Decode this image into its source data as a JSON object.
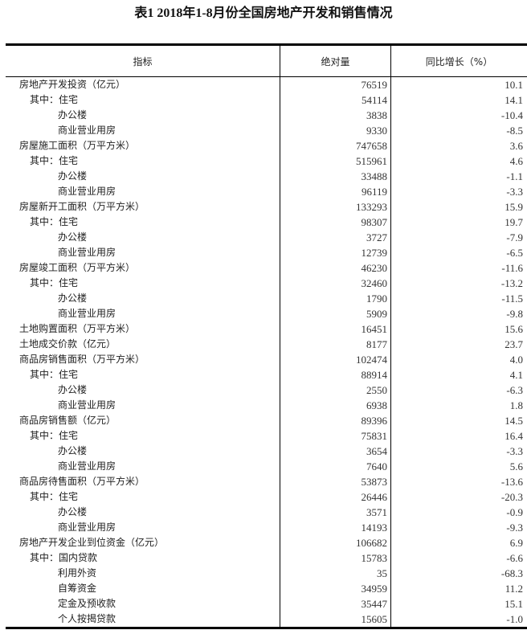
{
  "title": "表1 2018年1-8月份全国房地产开发和销售情况",
  "headers": {
    "indicator": "指标",
    "absolute": "绝对量",
    "yoy": "同比增长（%）"
  },
  "rows": [
    {
      "label": "房地产开发投资（亿元）",
      "level": 0,
      "value": "76519",
      "growth": "10.1"
    },
    {
      "label": "其中：住宅",
      "level": 1,
      "value": "54114",
      "growth": "14.1"
    },
    {
      "label": "办公楼",
      "level": 2,
      "value": "3838",
      "growth": "-10.4"
    },
    {
      "label": "商业营业用房",
      "level": 2,
      "value": "9330",
      "growth": "-8.5"
    },
    {
      "label": "房屋施工面积（万平方米）",
      "level": 0,
      "value": "747658",
      "growth": "3.6"
    },
    {
      "label": "其中：住宅",
      "level": 1,
      "value": "515961",
      "growth": "4.6"
    },
    {
      "label": "办公楼",
      "level": 2,
      "value": "33488",
      "growth": "-1.1"
    },
    {
      "label": "商业营业用房",
      "level": 2,
      "value": "96119",
      "growth": "-3.3"
    },
    {
      "label": "房屋新开工面积（万平方米）",
      "level": 0,
      "value": "133293",
      "growth": "15.9"
    },
    {
      "label": "其中：住宅",
      "level": 1,
      "value": "98307",
      "growth": "19.7"
    },
    {
      "label": "办公楼",
      "level": 2,
      "value": "3727",
      "growth": "-7.9"
    },
    {
      "label": "商业营业用房",
      "level": 2,
      "value": "12739",
      "growth": "-6.5"
    },
    {
      "label": "房屋竣工面积（万平方米）",
      "level": 0,
      "value": "46230",
      "growth": "-11.6"
    },
    {
      "label": "其中：住宅",
      "level": 1,
      "value": "32460",
      "growth": "-13.2"
    },
    {
      "label": "办公楼",
      "level": 2,
      "value": "1790",
      "growth": "-11.5"
    },
    {
      "label": "商业营业用房",
      "level": 2,
      "value": "5909",
      "growth": "-9.8"
    },
    {
      "label": "土地购置面积（万平方米）",
      "level": 0,
      "value": "16451",
      "growth": "15.6"
    },
    {
      "label": "土地成交价款（亿元）",
      "level": 0,
      "value": "8177",
      "growth": "23.7"
    },
    {
      "label": "商品房销售面积（万平方米）",
      "level": 0,
      "value": "102474",
      "growth": "4.0"
    },
    {
      "label": "其中：住宅",
      "level": 1,
      "value": "88914",
      "growth": "4.1"
    },
    {
      "label": "办公楼",
      "level": 2,
      "value": "2550",
      "growth": "-6.3"
    },
    {
      "label": "商业营业用房",
      "level": 2,
      "value": "6938",
      "growth": "1.8"
    },
    {
      "label": "商品房销售额（亿元）",
      "level": 0,
      "value": "89396",
      "growth": "14.5"
    },
    {
      "label": "其中：住宅",
      "level": 1,
      "value": "75831",
      "growth": "16.4"
    },
    {
      "label": "办公楼",
      "level": 2,
      "value": "3654",
      "growth": "-3.3"
    },
    {
      "label": "商业营业用房",
      "level": 2,
      "value": "7640",
      "growth": "5.6"
    },
    {
      "label": "商品房待售面积（万平方米）",
      "level": 0,
      "value": "53873",
      "growth": "-13.6"
    },
    {
      "label": "其中：住宅",
      "level": 1,
      "value": "26446",
      "growth": "-20.3"
    },
    {
      "label": "办公楼",
      "level": 2,
      "value": "3571",
      "growth": "-0.9"
    },
    {
      "label": "商业营业用房",
      "level": 2,
      "value": "14193",
      "growth": "-9.3"
    },
    {
      "label": "房地产开发企业到位资金（亿元）",
      "level": 0,
      "value": "106682",
      "growth": "6.9"
    },
    {
      "label": "其中：国内贷款",
      "level": 1,
      "value": "15783",
      "growth": "-6.6"
    },
    {
      "label": "利用外资",
      "level": 2,
      "value": "35",
      "growth": "-68.3"
    },
    {
      "label": "自筹资金",
      "level": 2,
      "value": "34959",
      "growth": "11.2"
    },
    {
      "label": "定金及预收款",
      "level": 2,
      "value": "35447",
      "growth": "15.1"
    },
    {
      "label": "个人按揭贷款",
      "level": 2,
      "value": "15605",
      "growth": "-1.0"
    }
  ]
}
